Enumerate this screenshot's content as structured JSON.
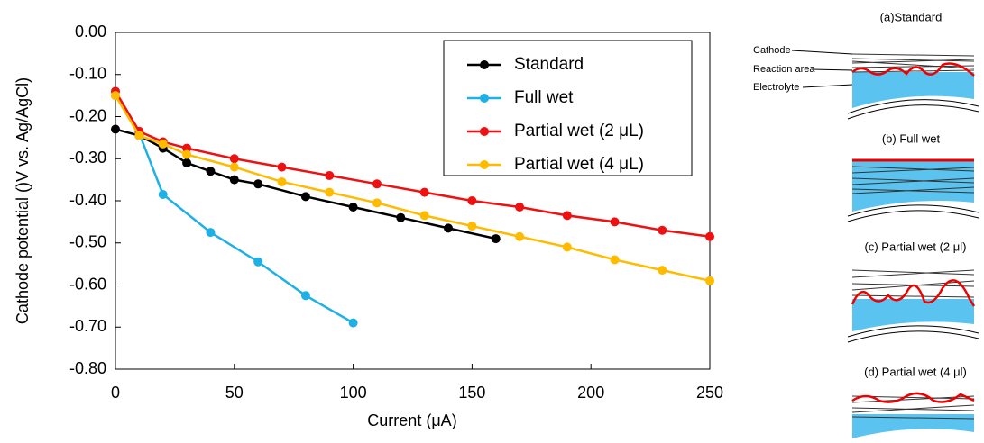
{
  "chart_data": {
    "type": "line",
    "x_label": "Current (μA)",
    "y_label": "Cathode potential ()V vs. Ag/AgCl)",
    "xlim": [
      0,
      250
    ],
    "xticks": [
      0,
      50,
      100,
      150,
      200,
      250
    ],
    "ylim": [
      -0.8,
      0
    ],
    "yticks": [
      {
        "value": 0,
        "label": "0.00"
      },
      {
        "value": -0.1,
        "label": "-0.10"
      },
      {
        "value": -0.2,
        "label": "-0.20"
      },
      {
        "value": -0.3,
        "label": "-0.30"
      },
      {
        "value": -0.4,
        "label": "-0.40"
      },
      {
        "value": -0.5,
        "label": "-0.50"
      },
      {
        "value": -0.6,
        "label": "-0.60"
      },
      {
        "value": -0.7,
        "label": "-0.70"
      },
      {
        "value": -0.8,
        "label": "-0.80"
      }
    ],
    "legend": "upper right",
    "series": [
      {
        "name": "Standard",
        "color": "#000000",
        "x": [
          0,
          10,
          20,
          30,
          40,
          50,
          60,
          80,
          100,
          120,
          140,
          160
        ],
        "values": [
          -0.23,
          -0.245,
          -0.275,
          -0.31,
          -0.33,
          -0.35,
          -0.36,
          -0.39,
          -0.415,
          -0.44,
          -0.465,
          -0.49
        ]
      },
      {
        "name": "Full wet",
        "color": "#1fb0e6",
        "x": [
          0,
          10,
          20,
          40,
          60,
          80,
          100
        ],
        "values": [
          -0.15,
          -0.24,
          -0.385,
          -0.475,
          -0.545,
          -0.625,
          -0.69
        ]
      },
      {
        "name": "Partial wet (2 μL)",
        "color": "#ee1111",
        "x": [
          0,
          10,
          20,
          30,
          50,
          70,
          90,
          110,
          130,
          150,
          170,
          190,
          210,
          230,
          250
        ],
        "values": [
          -0.14,
          -0.235,
          -0.26,
          -0.275,
          -0.3,
          -0.32,
          -0.34,
          -0.36,
          -0.38,
          -0.4,
          -0.415,
          -0.435,
          -0.45,
          -0.47,
          -0.485
        ]
      },
      {
        "name": "Partial wet (4 μL)",
        "color": "#ffbb00",
        "x": [
          0,
          10,
          20,
          30,
          50,
          70,
          90,
          110,
          130,
          150,
          170,
          190,
          210,
          230,
          250
        ],
        "values": [
          -0.15,
          -0.245,
          -0.265,
          -0.29,
          -0.32,
          -0.355,
          -0.38,
          -0.405,
          -0.435,
          -0.46,
          -0.485,
          -0.51,
          -0.54,
          -0.565,
          -0.59
        ]
      }
    ]
  },
  "diagrams": {
    "panels": [
      "(a)Standard",
      "(b) Full wet",
      "(c) Partial wet (2 μl)",
      "(d) Partial wet (4 μl)"
    ],
    "labels": [
      "Cathode",
      "Reaction area",
      "Electrolyte"
    ]
  }
}
